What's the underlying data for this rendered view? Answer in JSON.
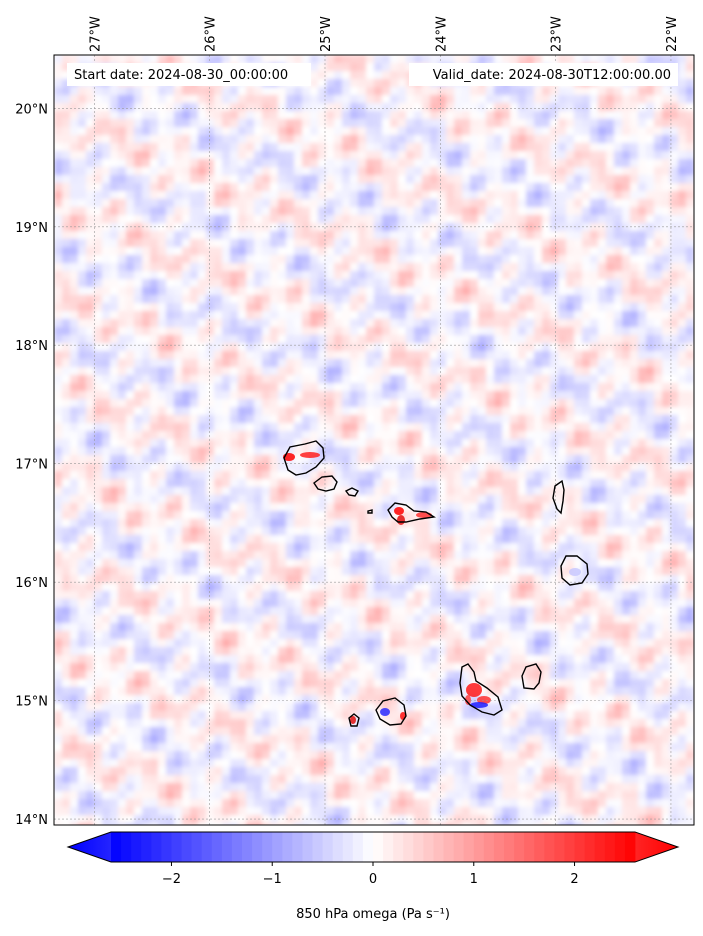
{
  "header": {
    "start_date": "Start date: 2024-08-30_00:00:00",
    "valid_date": "Valid_date: 2024-08-30T12:00:00.00"
  },
  "map": {
    "lon_labels": [
      "27°W",
      "26°W",
      "25°W",
      "24°W",
      "23°W",
      "22°W"
    ],
    "lat_labels": [
      "20°N",
      "19°N",
      "18°N",
      "17°N",
      "16°N",
      "15°N",
      "14°N"
    ],
    "lon_values": [
      -27,
      -26,
      -25,
      -24,
      -23,
      -22
    ],
    "lat_values": [
      20,
      19,
      18,
      17,
      16,
      15,
      14
    ],
    "lon_range": [
      -27.35,
      -21.8
    ],
    "lat_range": [
      13.95,
      20.45
    ],
    "field_range": [
      -2.6,
      2.6
    ],
    "colormap": "bwr",
    "gridlines": true
  },
  "colorbar": {
    "ticks": [
      "−2",
      "−1",
      "0",
      "1",
      "2"
    ],
    "tick_values": [
      -2,
      -1,
      0,
      1,
      2
    ],
    "label": "850 hPa omega (Pa s⁻¹)",
    "color_min": "#0000ff",
    "color_mid": "#ffffff",
    "color_max": "#ff0000",
    "extend": "both"
  }
}
